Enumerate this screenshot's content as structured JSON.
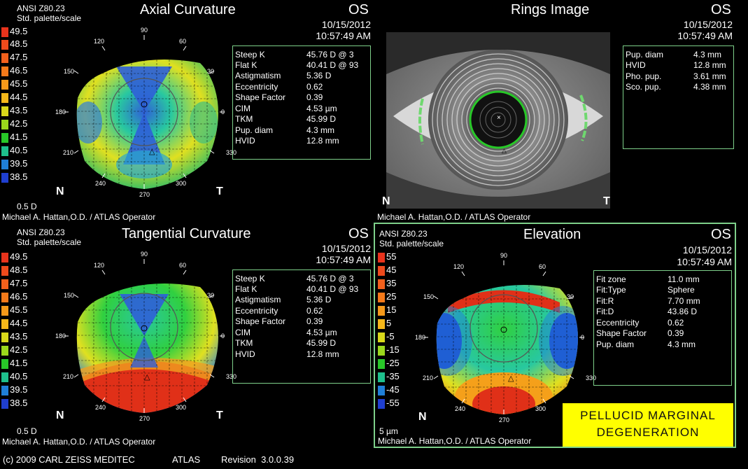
{
  "axial": {
    "standard": "ANSI Z80.23",
    "palette": "Std. palette/scale",
    "title": "Axial Curvature",
    "eye": "OS",
    "date": "10/15/2012",
    "time": "10:57:49 AM",
    "step": "0.5 D",
    "operator": "Michael A. Hattan,O.D. / ATLAS Operator",
    "scale": [
      "49.5",
      "48.5",
      "47.5",
      "46.5",
      "45.5",
      "44.5",
      "43.5",
      "42.5",
      "41.5",
      "40.5",
      "39.5",
      "38.5"
    ],
    "scale_colors": [
      "#e8331c",
      "#ee4a1c",
      "#f2601c",
      "#f47a1a",
      "#f59a1a",
      "#f5b81a",
      "#d8d81a",
      "#9ad81c",
      "#28c828",
      "#1ec08c",
      "#1f7fd8",
      "#1f3fd0"
    ],
    "info": [
      {
        "label": "Steep K",
        "value": "45.76 D @ 3"
      },
      {
        "label": "Flat K",
        "value": "40.41 D @ 93"
      },
      {
        "label": "Astigmatism",
        "value": "5.36 D"
      },
      {
        "label": "Eccentricity",
        "value": "0.62"
      },
      {
        "label": "Shape Factor",
        "value": "0.39"
      },
      {
        "label": "CIM",
        "value": "4.53 µm"
      },
      {
        "label": "TKM",
        "value": "45.99 D"
      },
      {
        "label": "Pup. diam",
        "value": "4.3 mm"
      },
      {
        "label": "HVID",
        "value": "12.8 mm"
      }
    ],
    "nasal": "N",
    "temporal": "T"
  },
  "rings": {
    "title": "Rings Image",
    "eye": "OS",
    "date": "10/15/2012",
    "time": "10:57:49 AM",
    "operator": "Michael A. Hattan,O.D. / ATLAS Operator",
    "info": [
      {
        "label": "Pup. diam",
        "value": "4.3 mm"
      },
      {
        "label": "HVID",
        "value": "12.8 mm"
      },
      {
        "label": "Pho. pup.",
        "value": "3.61 mm"
      },
      {
        "label": "Sco. pup.",
        "value": "4.38 mm"
      }
    ],
    "nasal": "N",
    "temporal": "T"
  },
  "tangential": {
    "standard": "ANSI Z80.23",
    "palette": "Std. palette/scale",
    "title": "Tangential Curvature",
    "eye": "OS",
    "date": "10/15/2012",
    "time": "10:57:49 AM",
    "step": "0.5 D",
    "operator": "Michael A. Hattan,O.D. / ATLAS Operator",
    "scale": [
      "49.5",
      "48.5",
      "47.5",
      "46.5",
      "45.5",
      "44.5",
      "43.5",
      "42.5",
      "41.5",
      "40.5",
      "39.5",
      "38.5"
    ],
    "info": [
      {
        "label": "Steep K",
        "value": "45.76 D @ 3"
      },
      {
        "label": "Flat K",
        "value": "40.41 D @ 93"
      },
      {
        "label": "Astigmatism",
        "value": "5.36 D"
      },
      {
        "label": "Eccentricity",
        "value": "0.62"
      },
      {
        "label": "Shape Factor",
        "value": "0.39"
      },
      {
        "label": "CIM",
        "value": "4.53 µm"
      },
      {
        "label": "TKM",
        "value": "45.99 D"
      },
      {
        "label": "HVID",
        "value": "12.8 mm"
      }
    ],
    "nasal": "N",
    "temporal": "T"
  },
  "elevation": {
    "standard": "ANSI Z80.23",
    "palette": "Std. palette/scale",
    "title": "Elevation",
    "eye": "OS",
    "date": "10/15/2012",
    "time": "10:57:49 AM",
    "step": "5 µm",
    "operator": "Michael A. Hattan,O.D. / ATLAS Operator",
    "scale": [
      "55",
      "45",
      "35",
      "25",
      "15",
      "5",
      "-5",
      "-15",
      "-25",
      "-35",
      "-45",
      "-55"
    ],
    "scale_colors": [
      "#e8331c",
      "#ee4a1c",
      "#f2601c",
      "#f47a1a",
      "#f59a1a",
      "#f5b81a",
      "#d8d81a",
      "#9ad81c",
      "#28c828",
      "#1ec08c",
      "#1f7fd8",
      "#1f3fd0"
    ],
    "info": [
      {
        "label": "Fit zone",
        "value": "11.0 mm"
      },
      {
        "label": "Fit:Type",
        "value": "Sphere"
      },
      {
        "label": "Fit:R",
        "value": "7.70 mm"
      },
      {
        "label": "Fit:D",
        "value": "43.86 D"
      },
      {
        "label": "Eccentricity",
        "value": "0.62"
      },
      {
        "label": "Shape Factor",
        "value": "0.39"
      },
      {
        "label": "Pup. diam",
        "value": "4.3 mm"
      }
    ],
    "nasal": "N",
    "highlight_line1": "PELLUCID MARGINAL",
    "highlight_line2": "DEGENERATION"
  },
  "angles": [
    "90",
    "60",
    "30",
    "0",
    "330",
    "300",
    "270",
    "240",
    "210",
    "180",
    "150",
    "120"
  ],
  "footer": {
    "copyright": "(c) 2009 CARL ZEISS MEDITEC",
    "product": "ATLAS",
    "revision": "Revision  3.0.0.39"
  }
}
